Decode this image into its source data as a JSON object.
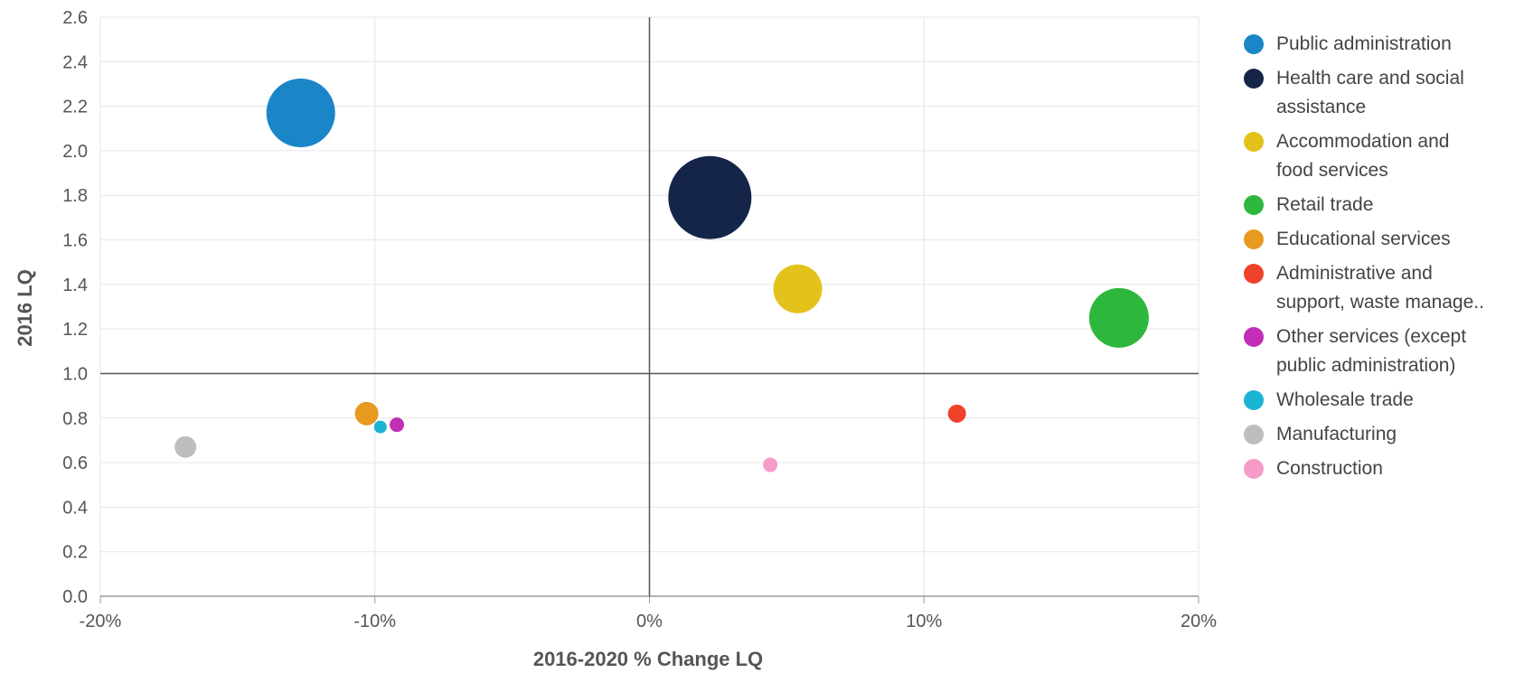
{
  "chart_data": {
    "type": "scatter",
    "xlabel": "2016-2020 % Change LQ",
    "ylabel": "2016 LQ",
    "xlim": [
      -20,
      20
    ],
    "ylim": [
      0.0,
      2.6
    ],
    "x_ticks": [
      "-20%",
      "-10%",
      "0%",
      "10%",
      "20%"
    ],
    "y_ticks": [
      "0.0",
      "0.2",
      "0.4",
      "0.6",
      "0.8",
      "1.0",
      "1.2",
      "1.4",
      "1.6",
      "1.8",
      "2.0",
      "2.2",
      "2.4",
      "2.6"
    ],
    "reference_lines": {
      "x": 0,
      "y": 1.0
    },
    "grid": true,
    "legend_position": "right",
    "series": [
      {
        "name": "Public administration",
        "color": "#1a86c8",
        "x": -12.7,
        "y": 2.17,
        "size": 38
      },
      {
        "name": "Health care and social\nassistance",
        "color": "#15254a",
        "x": 2.2,
        "y": 1.79,
        "size": 46
      },
      {
        "name": "Accommodation and\nfood services",
        "color": "#e3c21c",
        "x": 5.4,
        "y": 1.38,
        "size": 27
      },
      {
        "name": "Retail trade",
        "color": "#2db83d",
        "x": 17.1,
        "y": 1.25,
        "size": 33
      },
      {
        "name": "Educational services",
        "color": "#e69a1f",
        "x": -10.3,
        "y": 0.82,
        "size": 13
      },
      {
        "name": "Administrative and\nsupport, waste manage..",
        "color": "#f0422b",
        "x": 11.2,
        "y": 0.82,
        "size": 10
      },
      {
        "name": "Other services (except\npublic administration)",
        "color": "#c22eb5",
        "x": -9.2,
        "y": 0.77,
        "size": 8
      },
      {
        "name": "Wholesale trade",
        "color": "#1ab4d4",
        "x": -9.8,
        "y": 0.76,
        "size": 7
      },
      {
        "name": "Manufacturing",
        "color": "#bdbdbd",
        "x": -16.9,
        "y": 0.67,
        "size": 12
      },
      {
        "name": "Construction",
        "color": "#f59bc8",
        "x": 4.4,
        "y": 0.59,
        "size": 8
      }
    ]
  }
}
